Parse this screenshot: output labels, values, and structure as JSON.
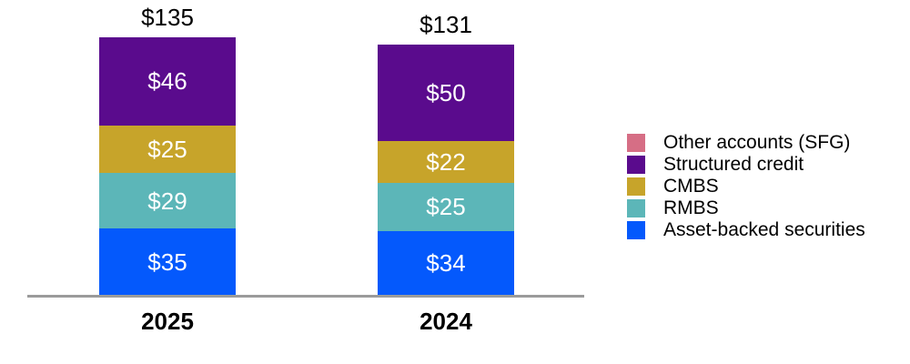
{
  "chart_data": {
    "type": "bar",
    "stacked": true,
    "orientation": "vertical",
    "value_prefix": "$",
    "grid": false,
    "background_color": "#ffffff",
    "axis": {
      "baseline_color": "#9b9b9b",
      "categories_axis": "x"
    },
    "categories": [
      "2025",
      "2024"
    ],
    "totals": [
      135,
      131
    ],
    "total_labels": [
      "$135",
      "$131"
    ],
    "series": [
      {
        "name": "Asset-backed securities",
        "color": "#0459fc",
        "values": [
          35,
          34
        ]
      },
      {
        "name": "RMBS",
        "color": "#5cb6b8",
        "values": [
          29,
          25
        ]
      },
      {
        "name": "CMBS",
        "color": "#c7a42a",
        "values": [
          25,
          22
        ]
      },
      {
        "name": "Structured credit",
        "color": "#5a0b8d",
        "values": [
          46,
          50
        ]
      },
      {
        "name": "Other accounts (SFG)",
        "color": "#d66e85",
        "values": [
          0,
          0
        ]
      }
    ],
    "segment_labels": {
      "2025": [
        "$35",
        "$29",
        "$25",
        "$46"
      ],
      "2024": [
        "$34",
        "$25",
        "$22",
        "$50"
      ]
    },
    "legend": {
      "position": "right",
      "items": [
        {
          "label": "Other accounts (SFG)",
          "color": "#d66e85"
        },
        {
          "label": "Structured credit",
          "color": "#5a0b8d"
        },
        {
          "label": "CMBS",
          "color": "#c7a42a"
        },
        {
          "label": "RMBS",
          "color": "#5cb6b8"
        },
        {
          "label": "Asset-backed securities",
          "color": "#0459fc"
        }
      ]
    },
    "text_colors": {
      "totals": "#000000",
      "segment_values": "#ffffff",
      "category_labels": "#000000"
    }
  }
}
